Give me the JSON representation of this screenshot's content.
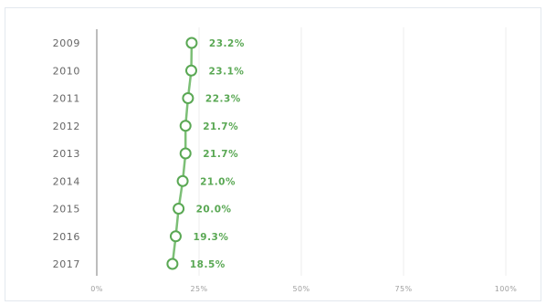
{
  "chart_data": {
    "type": "line",
    "orientation": "horizontal",
    "title": "",
    "xlabel": "",
    "ylabel": "",
    "xlim": [
      0,
      100
    ],
    "grid": true,
    "categories": [
      "2009",
      "2010",
      "2011",
      "2012",
      "2013",
      "2014",
      "2015",
      "2016",
      "2017"
    ],
    "values": [
      23.2,
      23.1,
      22.3,
      21.7,
      21.7,
      21.0,
      20.0,
      19.3,
      18.5
    ],
    "value_labels": [
      "23.2%",
      "23.1%",
      "22.3%",
      "21.7%",
      "21.7%",
      "21.0%",
      "20.0%",
      "19.3%",
      "18.5%"
    ],
    "x_ticks": [
      "0%",
      "25%",
      "50%",
      "75%",
      "100%"
    ],
    "x_tick_values": [
      0,
      25,
      50,
      75,
      100
    ],
    "colors": {
      "series": "#7cbf76",
      "label": "#5aa854",
      "grid": "#eeeeee",
      "axis": "#bdbdbd",
      "frame": "#e3e8ee"
    }
  }
}
